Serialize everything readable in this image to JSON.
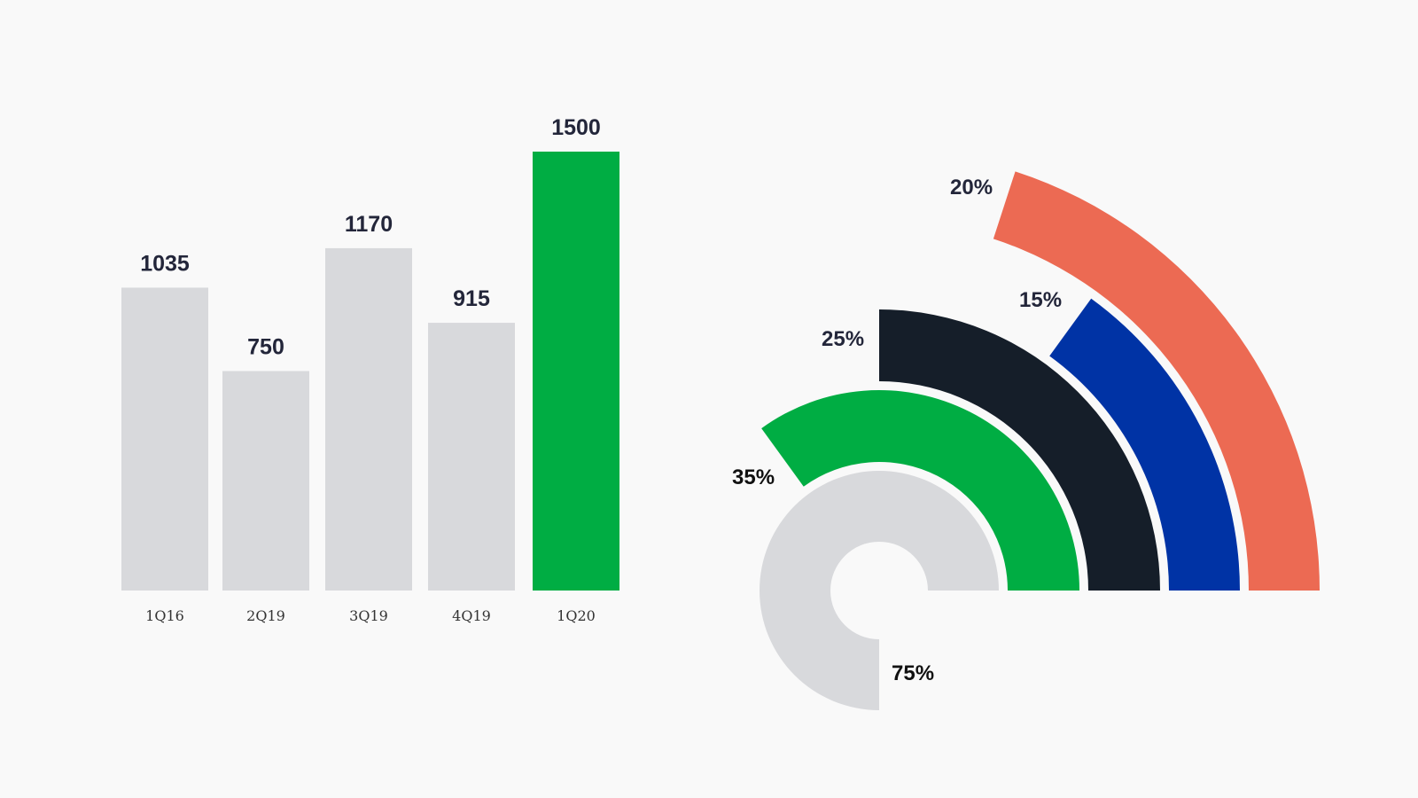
{
  "chart_data": [
    {
      "type": "bar",
      "categories": [
        "1Q16",
        "2Q19",
        "3Q19",
        "4Q19",
        "1Q20"
      ],
      "values": [
        1035,
        750,
        1170,
        915,
        1500
      ],
      "value_labels": [
        "1035",
        "750",
        "1170",
        "915",
        "1500"
      ],
      "colors": [
        "#d8d9dc",
        "#d8d9dc",
        "#d8d9dc",
        "#d8d9dc",
        "#00ad43"
      ],
      "ylim": [
        0,
        1500
      ],
      "grid": false,
      "legend": "none"
    },
    {
      "type": "radial_bar",
      "rings": [
        {
          "label": "75%",
          "value": 75,
          "color": "#d8d9dc",
          "label_color": "#111111"
        },
        {
          "label": "35%",
          "value": 35,
          "color": "#00ad43",
          "label_color": "#111111"
        },
        {
          "label": "25%",
          "value": 25,
          "color": "#151e29",
          "label_color": "#23263a"
        },
        {
          "label": "15%",
          "value": 15,
          "color": "#0033a5",
          "label_color": "#23263a"
        },
        {
          "label": "20%",
          "value": 20,
          "color": "#ec6a53",
          "label_color": "#23263a"
        }
      ],
      "grid": false,
      "legend": "none"
    }
  ]
}
